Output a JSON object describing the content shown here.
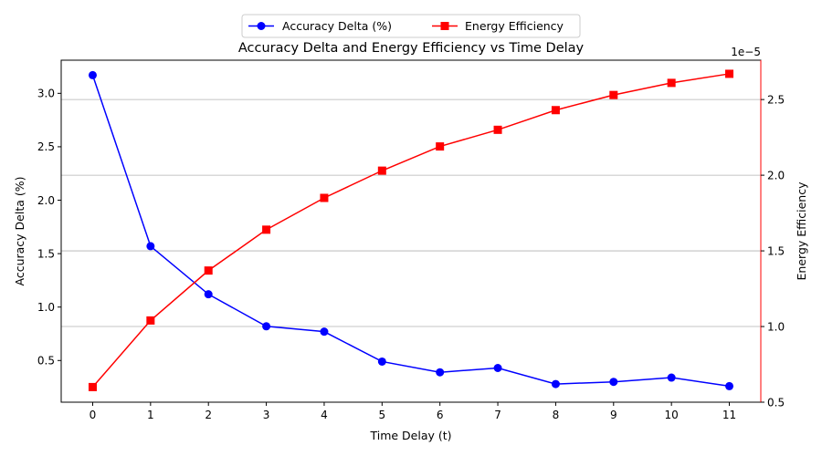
{
  "chart_data": {
    "type": "line",
    "title": "Accuracy Delta and Energy Efficiency vs Time Delay",
    "xlabel": "Time Delay (t)",
    "ylabel_left": "Accuracy Delta (%)",
    "ylabel_right": "Energy Efficiency",
    "right_axis_offset_label": "1e−5",
    "x": [
      0,
      1,
      2,
      3,
      4,
      5,
      6,
      7,
      8,
      9,
      10,
      11
    ],
    "ylim_left": [
      0.11,
      3.31
    ],
    "yticks_left": [
      "0.5",
      "1.0",
      "1.5",
      "2.0",
      "2.5",
      "3.0"
    ],
    "ylim_right": [
      0.5,
      2.76
    ],
    "yticks_right": [
      "0.5",
      "1.0",
      "1.5",
      "2.0",
      "2.5"
    ],
    "grid": "right-axis horizontal",
    "legend_position": "top-center",
    "series": [
      {
        "name": "Accuracy Delta (%)",
        "axis": "left",
        "color": "#0000ff",
        "marker": "circle",
        "values": [
          3.17,
          1.57,
          1.12,
          0.82,
          0.77,
          0.49,
          0.39,
          0.43,
          0.28,
          0.3,
          0.34,
          0.26
        ]
      },
      {
        "name": "Energy Efficiency",
        "axis": "right",
        "color": "#ff0000",
        "marker": "square",
        "values": [
          0.6,
          1.04,
          1.37,
          1.64,
          1.85,
          2.03,
          2.19,
          2.3,
          2.43,
          2.53,
          2.61,
          2.67
        ]
      }
    ]
  }
}
